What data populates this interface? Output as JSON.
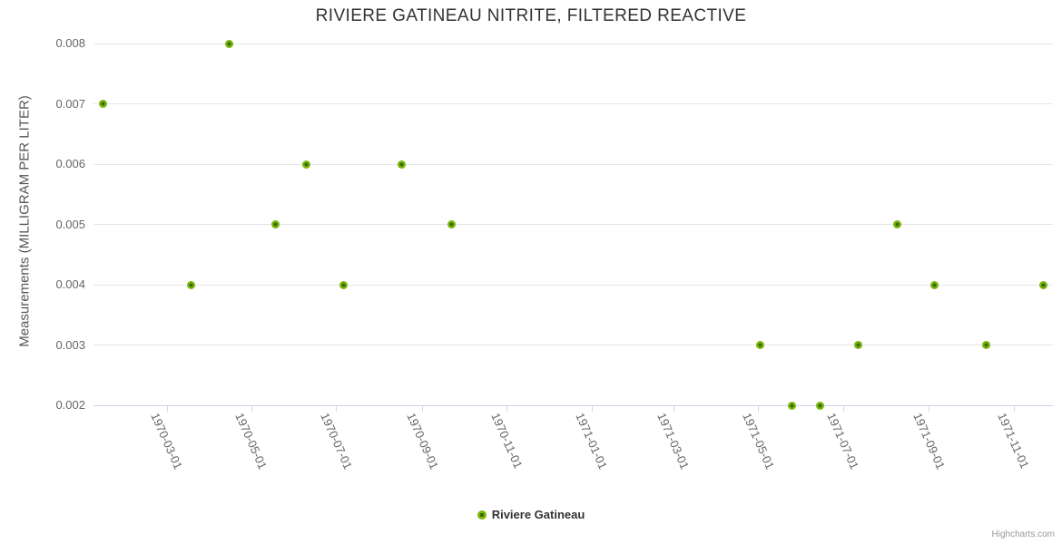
{
  "chart": {
    "credits": "Highcharts.com"
  },
  "chart_data": {
    "type": "scatter",
    "title": "RIVIERE GATINEAU NITRITE, FILTERED REACTIVE",
    "xlabel": "",
    "ylabel": "Measurements (MILLIGRAM PER LITER)",
    "x_type": "datetime",
    "grid": "horizontal",
    "legend_position": "bottom-center",
    "xlim": [
      "1970-01-07",
      "1971-11-29"
    ],
    "ylim": [
      0.002,
      0.008
    ],
    "y_ticks": [
      0.002,
      0.003,
      0.004,
      0.005,
      0.006,
      0.007,
      0.008
    ],
    "x_ticks": [
      "1970-03-01",
      "1970-05-01",
      "1970-07-01",
      "1970-09-01",
      "1970-11-01",
      "1971-01-01",
      "1971-03-01",
      "1971-05-01",
      "1971-07-01",
      "1971-09-01",
      "1971-11-01"
    ],
    "series": [
      {
        "name": "Riviere Gatineau",
        "color": "#7bb50a",
        "marker_center_color": "#356b02",
        "points": [
          {
            "date": "1970-01-14",
            "value": 0.007
          },
          {
            "date": "1970-03-18",
            "value": 0.004
          },
          {
            "date": "1970-04-15",
            "value": 0.008
          },
          {
            "date": "1970-05-18",
            "value": 0.005
          },
          {
            "date": "1970-06-09",
            "value": 0.006
          },
          {
            "date": "1970-07-06",
            "value": 0.004
          },
          {
            "date": "1970-08-17",
            "value": 0.006
          },
          {
            "date": "1970-09-22",
            "value": 0.005
          },
          {
            "date": "1971-05-02",
            "value": 0.003
          },
          {
            "date": "1971-05-25",
            "value": 0.002
          },
          {
            "date": "1971-06-14",
            "value": 0.002
          },
          {
            "date": "1971-07-12",
            "value": 0.003
          },
          {
            "date": "1971-08-09",
            "value": 0.005
          },
          {
            "date": "1971-09-05",
            "value": 0.004
          },
          {
            "date": "1971-10-12",
            "value": 0.003
          },
          {
            "date": "1971-11-22",
            "value": 0.004
          }
        ]
      }
    ],
    "colors": {
      "title": "#333333",
      "axis_label": "#666666",
      "axis_line": "#ccd6eb",
      "gridline": "#e6e6e6",
      "credits": "#999999"
    }
  }
}
